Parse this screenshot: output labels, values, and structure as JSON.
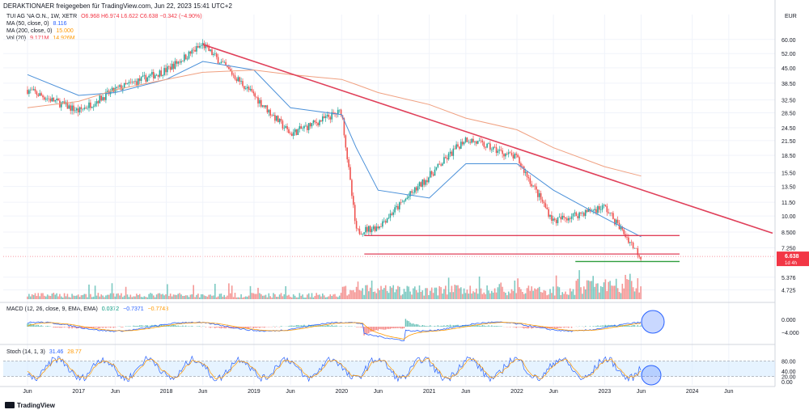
{
  "header": "DERAKTIONAER freigegeben für TradingView.com, Jun 22, 2023 15:41 UTC+2",
  "symbol": {
    "title": "TUI AG NA O.N., 1W, XETR",
    "ohlc": "O6.968  H6.974  L6.622  C6.638  −0.342 (−4.90%)",
    "ma50": {
      "label": "MA (50, close, 0)",
      "value": "8.116"
    },
    "ma200": {
      "label": "MA (200, close, 0)",
      "value": "15.000"
    },
    "vol": {
      "label": "Vol (20)",
      "v1": "9.171M",
      "v2": "14.926M"
    }
  },
  "price_axis": {
    "currency": "EUR",
    "labels": [
      "60.00",
      "52.00",
      "45.00",
      "38.50",
      "32.50",
      "28.50",
      "24.50",
      "21.50",
      "18.50",
      "15.50",
      "13.50",
      "11.50",
      "10.00",
      "8.500",
      "7.250",
      "5.376",
      "4.725"
    ],
    "last_price": "6.638",
    "countdown": "1d 4h"
  },
  "macd": {
    "label": "MACD (12, 26, close, 9, EMA, EMA)",
    "values": [
      "0.0372",
      "−0.7371",
      "−0.7743"
    ],
    "axis": [
      "0.000",
      "−4.000"
    ]
  },
  "stoch": {
    "label": "Stoch (14, 1, 3)",
    "values": [
      "31.46",
      "28.77"
    ],
    "axis": [
      "80.00",
      "40.00",
      "20.00",
      "0.00"
    ]
  },
  "time_axis": [
    "Jun",
    "2017",
    "Jun",
    "2018",
    "Jun",
    "2019",
    "Jun",
    "2020",
    "Jun",
    "2021",
    "Jun",
    "2022",
    "Jun",
    "2023",
    "Jun",
    "2024",
    "Jun"
  ],
  "brand": "TradingView",
  "colors": {
    "up": "#26a69a",
    "down": "#ef5350",
    "ma50": "#4a90d9",
    "ma200": "#f0a080",
    "trendline": "#e0405a",
    "support": "#e0405a",
    "green_line": "#2e9e3e",
    "stoch_band": "#d6ebff"
  },
  "chart_data": {
    "type": "line",
    "title": "TUI AG NA O.N., 1W, XETR",
    "scale": "log",
    "ylim": [
      4.3,
      70
    ],
    "x": [
      "2016-06",
      "2017-01",
      "2017-06",
      "2018-01",
      "2018-06",
      "2019-01",
      "2019-06",
      "2020-01",
      "2020-03",
      "2020-06",
      "2021-01",
      "2021-06",
      "2022-01",
      "2022-06",
      "2023-01",
      "2023-06"
    ],
    "series": [
      {
        "name": "Close",
        "values": [
          36,
          29,
          36,
          44,
          57,
          34,
          23,
          29,
          8.5,
          9,
          15,
          22,
          18,
          9.5,
          11,
          6.6
        ]
      },
      {
        "name": "MA (50, close, 0)",
        "values": [
          42,
          34,
          35,
          40,
          48,
          44,
          30,
          28,
          20,
          13,
          12,
          17,
          17,
          13,
          9.8,
          8.1
        ]
      },
      {
        "name": "MA (200, close, 0)",
        "values": [
          30,
          32,
          36,
          40,
          43,
          44,
          42,
          40,
          38,
          35,
          31,
          27,
          24,
          20,
          16.5,
          15
        ]
      }
    ],
    "annotations": [
      {
        "type": "trendline",
        "from": [
          "2018-06",
          57
        ],
        "to": [
          "2024-12",
          8.4
        ]
      },
      {
        "type": "horizontal",
        "value": 8.2,
        "from": "2020-03",
        "to": "2023-06"
      },
      {
        "type": "horizontal",
        "value": 6.8,
        "from": "2020-03",
        "to": "2023-06"
      },
      {
        "type": "horizontal",
        "value": 6.3,
        "from": "2022-09",
        "to": "2023-06"
      }
    ]
  }
}
